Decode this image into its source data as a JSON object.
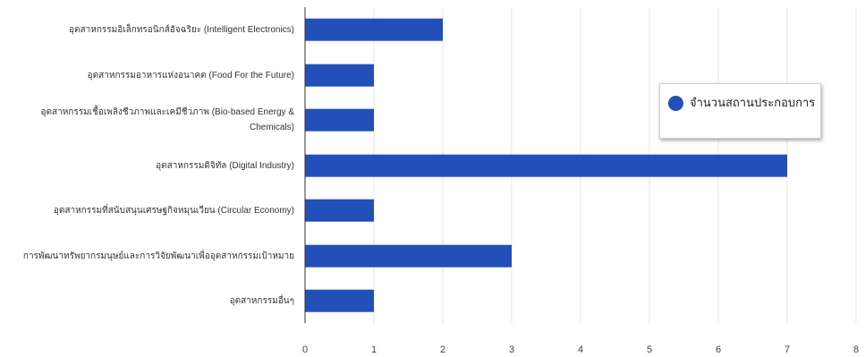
{
  "chart_data": {
    "type": "bar",
    "orientation": "horizontal",
    "categories": [
      "อุตสาหกรรมอิเล็กทรอนิกส์อัจฉริยะ (Intelligent Electronics)",
      "อุตสาหกรรมอาหารแห่งอนาคต (Food For the Future)",
      "อุตสาหกรรมเชื้อเพลิงชีวภาพและเคมีชีวภาพ (Bio-based Energy & Chemicals)",
      "อุตสาหกรรมดิจิทัล (Digital Industry)",
      "อุตสาหกรรมที่สนับสนุนเศรษฐกิจหมุนเวียน (Circular Economy)",
      "การพัฒนาทรัพยากรมนุษย์และการวิจัยพัฒนาเพื่ออุตสาหกรรมเป้าหมาย",
      "อุตสาหกรรมอื่นๆ"
    ],
    "series": [
      {
        "name": "จำนวนสถานประกอบการ",
        "values": [
          2,
          1,
          1,
          7,
          1,
          3,
          1
        ]
      }
    ],
    "xlim": [
      0,
      8
    ],
    "xticks": [
      "0",
      "1",
      "2",
      "3",
      "4",
      "5",
      "6",
      "7",
      "8"
    ],
    "grid": true,
    "legend_position": "right",
    "colors": {
      "bar": "#2350b8",
      "grid": "#e6e6e6",
      "axis": "#333333"
    }
  }
}
